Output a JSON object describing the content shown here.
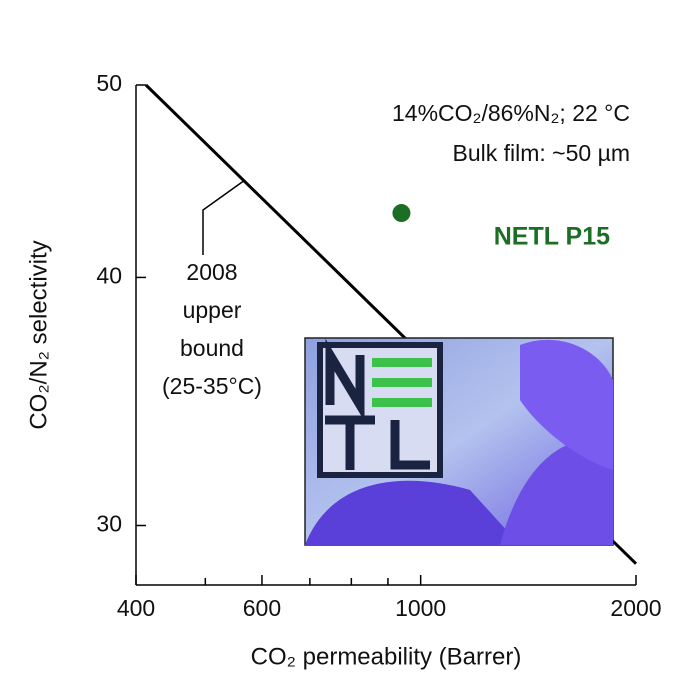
{
  "chart_data": {
    "type": "scatter",
    "xlabel": "CO₂ permeability (Barrer)",
    "ylabel": "CO₂/N₂ selectivity",
    "xlim": [
      400,
      2000
    ],
    "xticks": [
      400,
      600,
      1000,
      2000
    ],
    "x_minor_ticks": [
      500,
      700,
      800,
      900
    ],
    "ylim": [
      28,
      50
    ],
    "yticks": [
      30,
      40,
      50
    ],
    "xscale": "log",
    "yscale": "log",
    "x": [
      940
    ],
    "values": [
      43.1
    ],
    "color": "#1b6e23",
    "upper_bound": {
      "x": [
        413,
        2000
      ],
      "values": [
        50,
        28.7
      ],
      "color": "#000000"
    },
    "annotations": {
      "conditions": "14%CO₂/86%N₂; 22 °C",
      "film": "Bulk film: ~50 µm",
      "point_label": "NETL P15",
      "bound_label": [
        "2008",
        "upper",
        "bound",
        "(25-35°C)"
      ]
    }
  }
}
